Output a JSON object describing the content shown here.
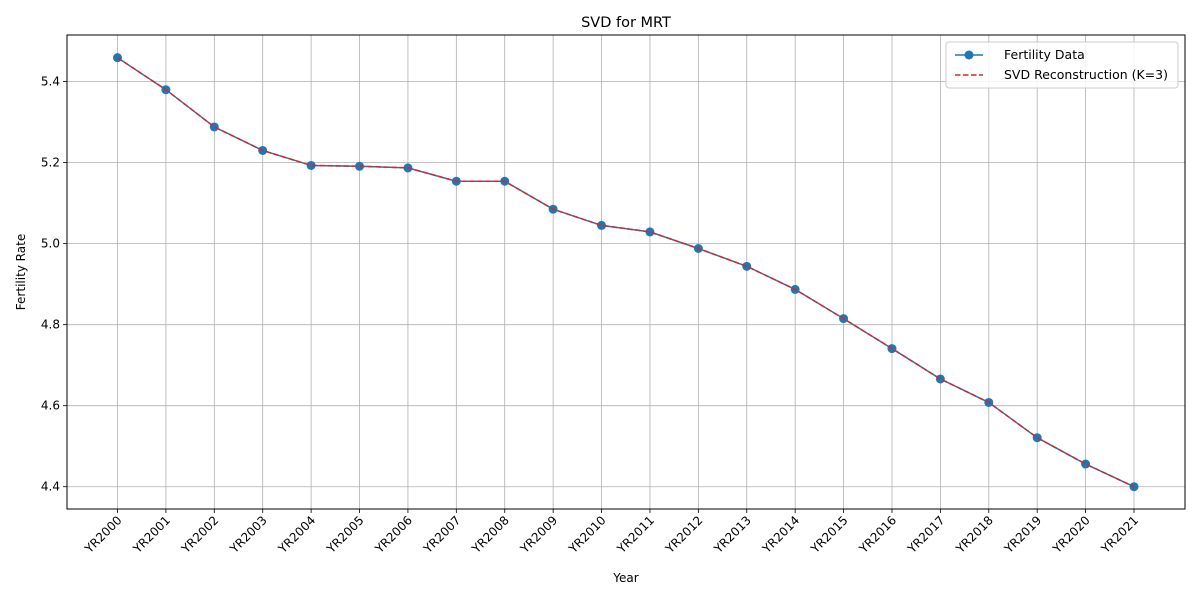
{
  "chart_data": {
    "type": "line",
    "title": "SVD for MRT",
    "xlabel": "Year",
    "ylabel": "Fertility Rate",
    "categories": [
      "YR2000",
      "YR2001",
      "YR2002",
      "YR2003",
      "YR2004",
      "YR2005",
      "YR2006",
      "YR2007",
      "YR2008",
      "YR2009",
      "YR2010",
      "YR2011",
      "YR2012",
      "YR2013",
      "YR2014",
      "YR2015",
      "YR2016",
      "YR2017",
      "YR2018",
      "YR2019",
      "YR2020",
      "YR2021"
    ],
    "yticks": [
      "4.4",
      "4.6",
      "4.8",
      "5.0",
      "5.2",
      "5.4"
    ],
    "ylim": [
      4.345,
      5.515
    ],
    "grid": true,
    "legend_position": "top-right",
    "series": [
      {
        "name": "Fertility Data",
        "color": "#1f77b4",
        "style": "solid-with-circle-markers",
        "values": [
          5.459,
          5.38,
          5.288,
          5.23,
          5.193,
          5.191,
          5.187,
          5.154,
          5.154,
          5.085,
          5.045,
          5.029,
          4.988,
          4.944,
          4.887,
          4.815,
          4.741,
          4.666,
          4.608,
          4.521,
          4.456,
          4.4
        ]
      },
      {
        "name": "SVD Reconstruction (K=3)",
        "color": "#d62728",
        "style": "dashed",
        "values": [
          5.459,
          5.38,
          5.288,
          5.23,
          5.193,
          5.191,
          5.187,
          5.154,
          5.154,
          5.085,
          5.045,
          5.029,
          4.988,
          4.944,
          4.887,
          4.815,
          4.741,
          4.666,
          4.608,
          4.521,
          4.456,
          4.4
        ]
      }
    ]
  }
}
